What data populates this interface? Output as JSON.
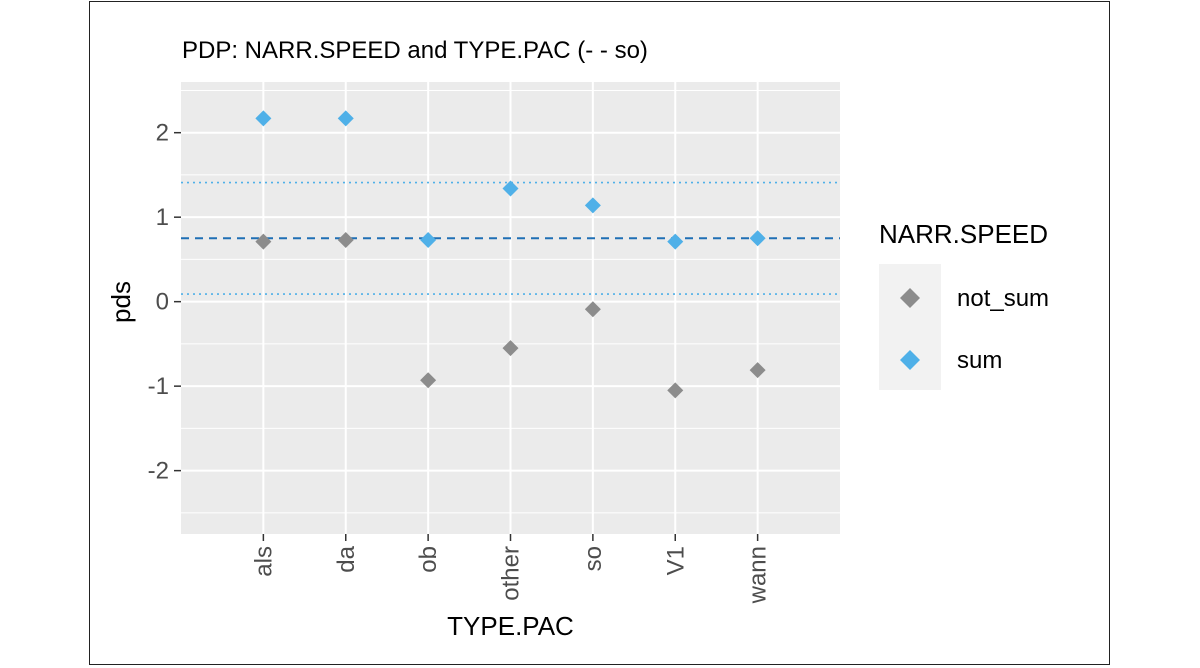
{
  "chart_data": {
    "type": "scatter",
    "title": "PDP: NARR.SPEED and TYPE.PAC (- - so)",
    "xlabel": "TYPE.PAC",
    "ylabel": "pds",
    "categories": [
      "als",
      "da",
      "ob",
      "other",
      "so",
      "V1",
      "wann"
    ],
    "y_ticks": [
      2,
      1,
      0,
      -1,
      -2
    ],
    "y_tick_labels": [
      "2",
      "1",
      "0",
      "-1",
      "-2"
    ],
    "ylim": [
      -2.75,
      2.6
    ],
    "grid": true,
    "legend": {
      "title": "NARR.SPEED",
      "position": "right"
    },
    "series": [
      {
        "name": "not_sum",
        "color": "#8c8c8c",
        "values": [
          0.71,
          0.73,
          -0.93,
          -0.55,
          -0.09,
          -1.05,
          -0.81
        ]
      },
      {
        "name": "sum",
        "color": "#4fb0e8",
        "values": [
          2.17,
          2.17,
          0.73,
          1.34,
          1.14,
          0.71,
          0.75
        ]
      }
    ],
    "reference_lines": [
      {
        "style": "dashed",
        "y": 0.75,
        "color": "#1f6fb5"
      },
      {
        "style": "dotted",
        "y": 1.41,
        "color": "#4fb0e8"
      },
      {
        "style": "dotted",
        "y": 0.09,
        "color": "#4fb0e8"
      }
    ]
  }
}
